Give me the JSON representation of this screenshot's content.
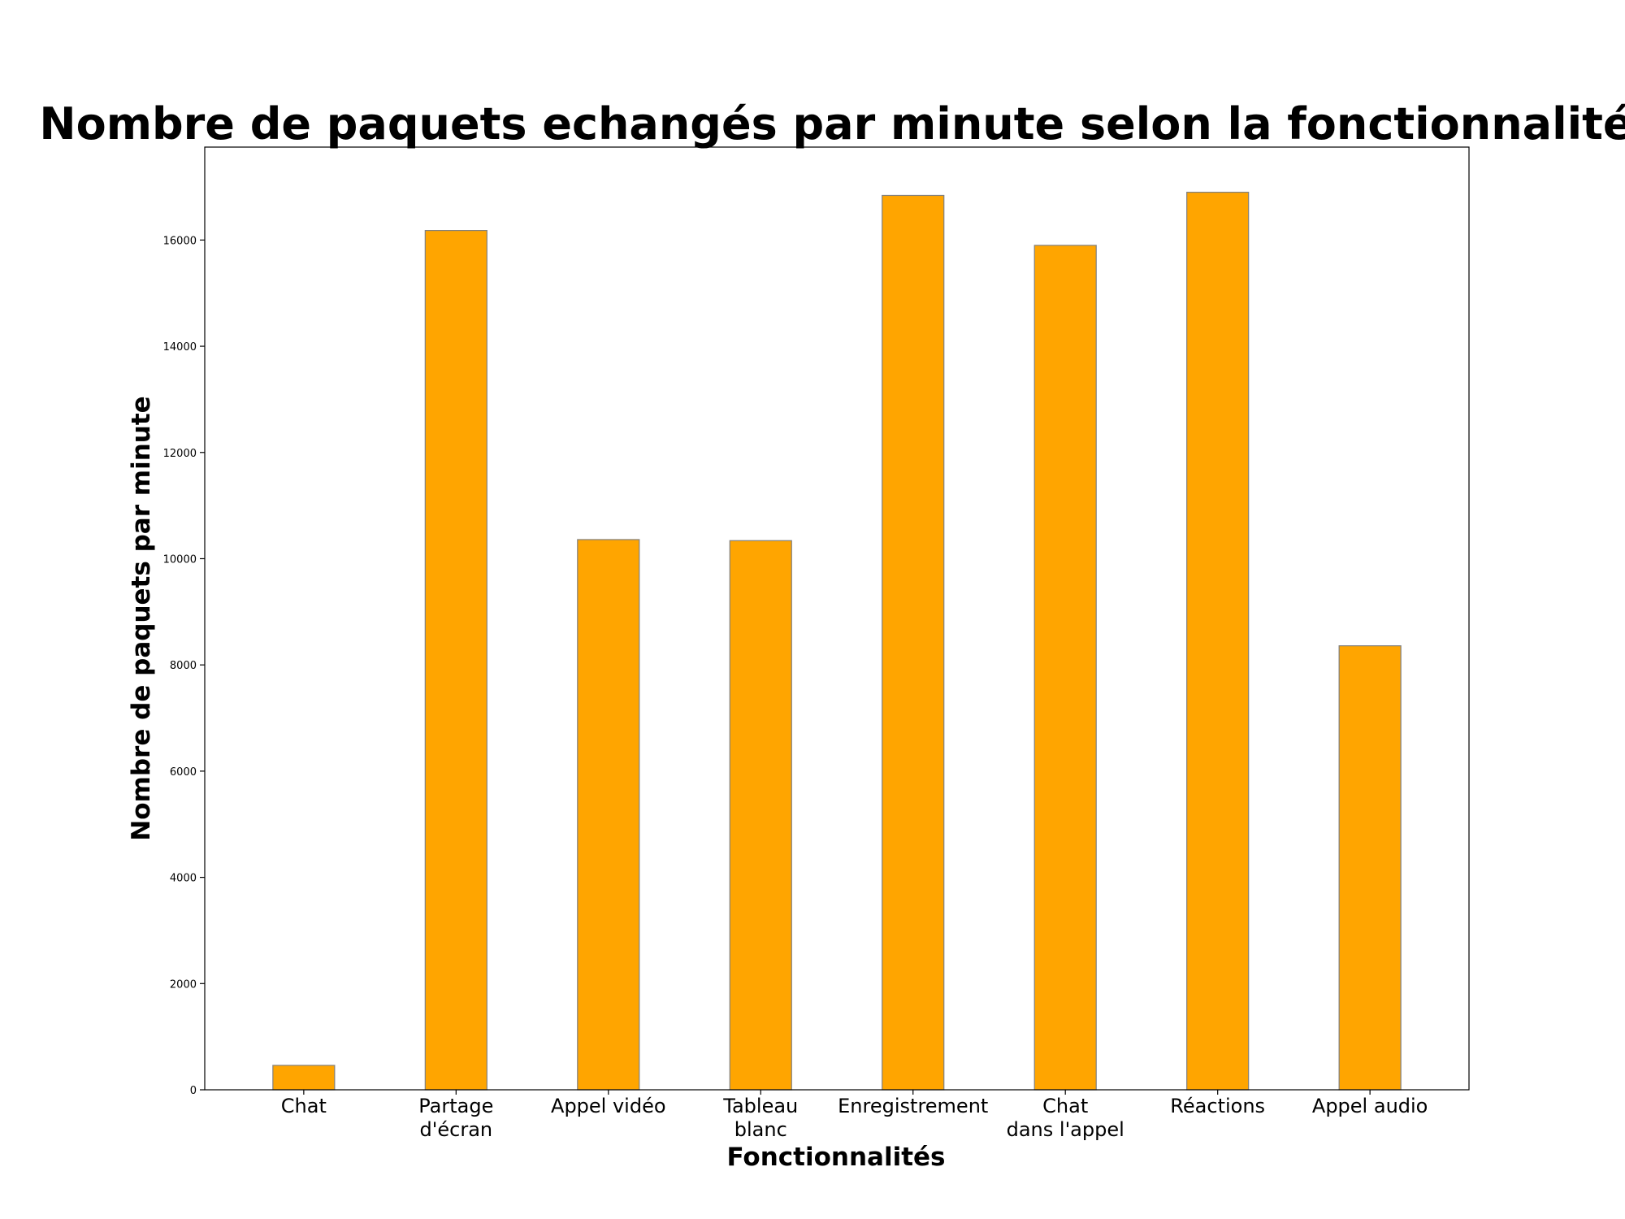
{
  "chart_data": {
    "type": "bar",
    "title": "Nombre de paquets echangés par minute selon la fonctionnalité",
    "xlabel": "Fonctionnalités",
    "ylabel": "Nombre de paquets par minute",
    "categories": [
      [
        "Chat"
      ],
      [
        "Partage",
        "d'écran"
      ],
      [
        "Appel vidéo"
      ],
      [
        "Tableau",
        "blanc"
      ],
      [
        "Enregistrement"
      ],
      [
        "Chat",
        "dans l'appel"
      ],
      [
        "Réactions"
      ],
      [
        "Appel audio"
      ]
    ],
    "values": [
      460,
      16180,
      10360,
      10340,
      16840,
      15900,
      16900,
      8360
    ],
    "ylim": [
      0,
      17750
    ],
    "yticks": [
      0,
      2000,
      4000,
      6000,
      8000,
      10000,
      12000,
      14000,
      16000
    ],
    "grid": false,
    "legend": null,
    "bar_color": "#ffa500",
    "bar_edge_color": "#808080"
  }
}
